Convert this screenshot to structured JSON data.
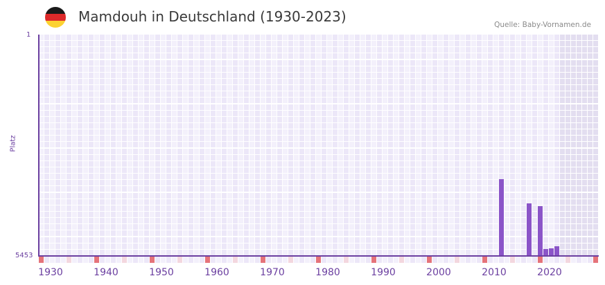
{
  "header": {
    "title": "Mamdouh in Deutschland (1930-2023)",
    "source": "Quelle: Baby-Vornamen.de",
    "flag_icon": "germany-flag-icon",
    "flag_colors": [
      "#1a1a1a",
      "#dd2a2a",
      "#fcd232"
    ]
  },
  "colors": {
    "bar": "#8b55c8",
    "axis": "#6b3fa0",
    "decade_marker": "#e5737a",
    "half_decade_marker": "#f3d7df",
    "grid_light": "#f3f0fb",
    "grid_mid": "#ece7f8",
    "future_shade": "#e3def0"
  },
  "chart_data": {
    "type": "bar",
    "title": "Mamdouh in Deutschland (1930-2023)",
    "subtitle": "Quelle: Baby-Vornamen.de",
    "xlabel": "",
    "ylabel": "Platz",
    "y_inverted": true,
    "ylim": [
      5453,
      1
    ],
    "y_ticks": [
      "1",
      "5453"
    ],
    "x_ticks": [
      "1930",
      "1940",
      "1950",
      "1960",
      "1970",
      "1980",
      "1990",
      "2000",
      "2010",
      "2020"
    ],
    "x_range": [
      1928,
      2028
    ],
    "grid": true,
    "legend": "none",
    "categories": [
      "2011",
      "2016",
      "2018",
      "2019",
      "2020",
      "2021"
    ],
    "values": [
      3562,
      4157,
      4225,
      5282,
      5265,
      5214
    ],
    "unit": "rank (Platz)",
    "shaded_future_from": 2022
  },
  "axis": {
    "y_top_label": "1",
    "y_bottom_label": "5453",
    "y_title": "Platz"
  }
}
